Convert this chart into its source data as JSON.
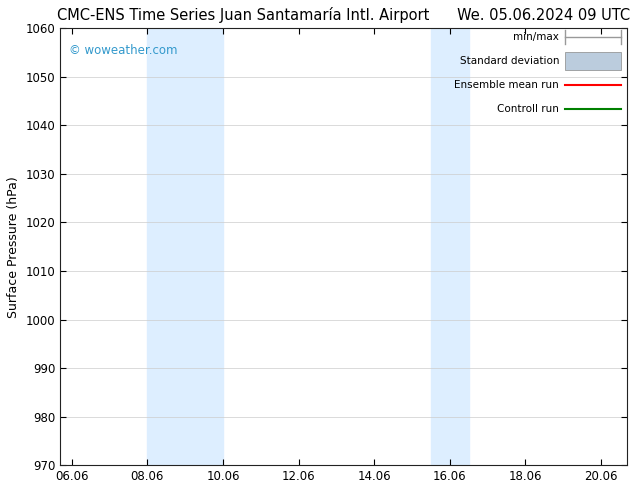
{
  "title": "CMC-ENS Time Series Juan Santamaría Intl. Airport      We. 05.06.2024 09 UTC",
  "ylabel": "Surface Pressure (hPa)",
  "watermark": "© woweather.com",
  "watermark_color": "#3399cc",
  "xlim_start": 5.75,
  "xlim_end": 20.75,
  "ylim_bottom": 970,
  "ylim_top": 1060,
  "ytick_step": 10,
  "xticks": [
    6.06,
    8.06,
    10.06,
    12.06,
    14.06,
    16.06,
    18.06,
    20.06
  ],
  "xtick_labels": [
    "06.06",
    "08.06",
    "10.06",
    "12.06",
    "14.06",
    "16.06",
    "18.06",
    "20.06"
  ],
  "shaded_bands": [
    {
      "xmin": 8.06,
      "xmax": 10.06
    },
    {
      "xmin": 15.56,
      "xmax": 16.56
    }
  ],
  "shaded_color": "#ddeeff",
  "bg_color": "#ffffff",
  "plot_bg_color": "#ffffff",
  "grid_color": "#cccccc",
  "legend_entries": [
    {
      "label": "min/max",
      "color": "#999999",
      "lw": 1.2,
      "ls": "-",
      "type": "minmax"
    },
    {
      "label": "Standard deviation",
      "color": "#bbccdd",
      "lw": 6,
      "ls": "-",
      "type": "band"
    },
    {
      "label": "Ensemble mean run",
      "color": "#ff0000",
      "lw": 1.5,
      "ls": "-",
      "type": "line"
    },
    {
      "label": "Controll run",
      "color": "#008000",
      "lw": 1.5,
      "ls": "-",
      "type": "line"
    }
  ],
  "title_fontsize": 10.5,
  "ylabel_fontsize": 9,
  "tick_fontsize": 8.5,
  "legend_fontsize": 7.5
}
